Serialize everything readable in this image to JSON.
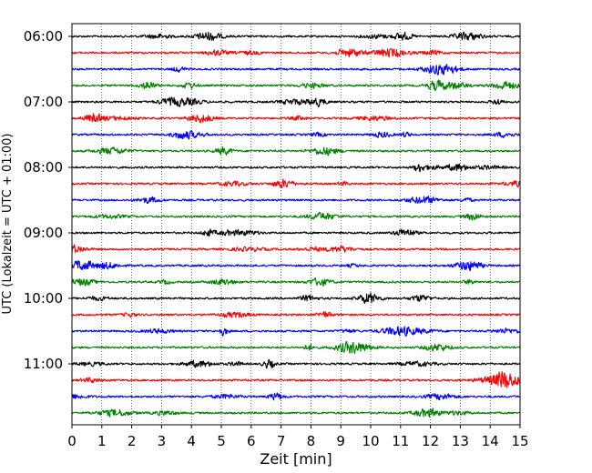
{
  "chart_data": {
    "type": "line",
    "title": "",
    "xlabel": "Zeit  [min]",
    "ylabel": "UTC (Lokalzeit = UTC + 01:00)",
    "xlim": [
      0,
      15
    ],
    "x_ticks": [
      0,
      1,
      2,
      3,
      4,
      5,
      6,
      7,
      8,
      9,
      10,
      11,
      12,
      13,
      14,
      15
    ],
    "y_tick_labels": [
      "06:00",
      "07:00",
      "08:00",
      "09:00",
      "10:00",
      "11:00"
    ],
    "trace_start_times": [
      "06:00",
      "06:15",
      "06:30",
      "06:45",
      "07:00",
      "07:15",
      "07:30",
      "07:45",
      "08:00",
      "08:15",
      "08:30",
      "08:45",
      "09:00",
      "09:15",
      "09:30",
      "09:45",
      "10:00",
      "10:15",
      "10:30",
      "10:45",
      "11:00",
      "11:15",
      "11:30",
      "11:45"
    ],
    "trace_minutes": 15,
    "color_cycle": [
      "#000000",
      "#ff0000",
      "#0000ff",
      "#008000"
    ],
    "grid": {
      "vertical": true,
      "style": "dotted"
    },
    "legend": "none"
  }
}
